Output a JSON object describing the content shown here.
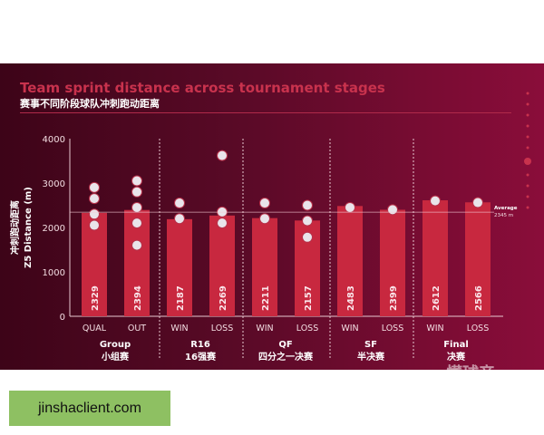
{
  "chart_data": {
    "type": "bar",
    "title": "Team sprint distance across tournament stages",
    "subtitle": "赛事不同阶段球队冲刺跑动距离",
    "ylabel_cn": "冲刺跑动距离",
    "ylabel": "Z5 Distance (m)",
    "ylim": [
      0,
      4000
    ],
    "yticks": [
      0,
      1000,
      2000,
      3000,
      4000
    ],
    "categories": [
      "QUAL",
      "OUT",
      "WIN",
      "LOSS",
      "WIN",
      "LOSS",
      "WIN",
      "LOSS",
      "WIN",
      "LOSS"
    ],
    "values": [
      2329,
      2394,
      2187,
      2269,
      2211,
      2157,
      2483,
      2399,
      2612,
      2566
    ],
    "groups": [
      {
        "name": "Group",
        "name_cn": "小组赛"
      },
      {
        "name": "R16",
        "name_cn": "16强赛"
      },
      {
        "name": "QF",
        "name_cn": "四分之一决赛"
      },
      {
        "name": "SF",
        "name_cn": "半决赛"
      },
      {
        "name": "Final",
        "name_cn": "决赛"
      }
    ],
    "average": {
      "label": "Average",
      "value": 2345,
      "value_label": "2345 m"
    },
    "bar_color": "#c8283f",
    "grid": false
  },
  "watermark": "懂球帝",
  "footer": {
    "site": "jinshaclient.com"
  }
}
